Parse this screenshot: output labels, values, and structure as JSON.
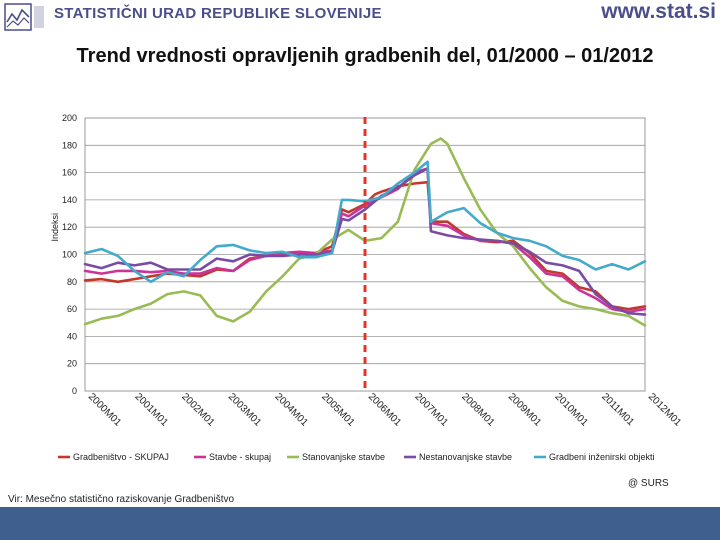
{
  "header": {
    "organization": "STATISTIČNI URAD REPUBLIKE SLOVENIJE",
    "website": "www.stat.si",
    "logo_icon": "surs-logo-icon"
  },
  "colors": {
    "brand": "#4a4f8c",
    "footer": "#3f5f8f",
    "marker": "#e8332a"
  },
  "chart_title": "Trend vrednosti opravljenih gradbenih del, 01/2000 – 01/2012",
  "credit": "@ SURS",
  "source": "Vir: Mesečno statistično raziskovanje Gradbeništvo",
  "chart_data": {
    "type": "line",
    "title": "Trend vrednosti opravljenih gradbenih del, 01/2000 – 01/2012",
    "xlabel": "",
    "ylabel": "Indeksi",
    "ylim": [
      0,
      200
    ],
    "yticks": [
      0,
      20,
      40,
      60,
      80,
      100,
      120,
      140,
      160,
      180,
      200
    ],
    "categories": [
      "2000M01",
      "2001M01",
      "2002M01",
      "2003M01",
      "2004M01",
      "2005M01",
      "2006M01",
      "2007M01",
      "2008M01",
      "2009M01",
      "2010M01",
      "2011M01",
      "2012M01"
    ],
    "grid": true,
    "legend": "bottom",
    "reference_line": {
      "x": 8.5,
      "style": "dashed",
      "color": "#e8332a"
    },
    "series": [
      {
        "name": "Gradbeništvo - SKUPAJ",
        "color": "#c0392b",
        "points": [
          [
            0,
            81
          ],
          [
            0.5,
            82
          ],
          [
            1,
            80
          ],
          [
            1.5,
            82
          ],
          [
            2,
            84
          ],
          [
            2.5,
            86
          ],
          [
            3,
            85
          ],
          [
            3.5,
            84
          ],
          [
            4,
            89
          ],
          [
            4.5,
            88
          ],
          [
            5,
            97
          ],
          [
            5.5,
            99
          ],
          [
            6,
            100
          ],
          [
            6.5,
            100
          ],
          [
            7,
            101
          ],
          [
            7.5,
            106
          ],
          [
            7.8,
            133
          ],
          [
            8,
            131
          ],
          [
            8.5,
            137
          ],
          [
            8.8,
            144
          ],
          [
            9,
            146
          ],
          [
            9.5,
            150
          ],
          [
            10,
            152
          ],
          [
            10.4,
            153
          ],
          [
            10.5,
            124
          ],
          [
            11,
            124
          ],
          [
            11.5,
            115
          ],
          [
            12,
            110
          ],
          [
            12.5,
            109
          ],
          [
            13,
            110
          ],
          [
            13.5,
            101
          ],
          [
            14,
            88
          ],
          [
            14.5,
            86
          ],
          [
            15,
            76
          ],
          [
            15.5,
            73
          ],
          [
            16,
            62
          ],
          [
            16.5,
            60
          ],
          [
            17,
            62
          ]
        ]
      },
      {
        "name": "Stavbe - skupaj",
        "color": "#cc3399",
        "points": [
          [
            0,
            88
          ],
          [
            0.5,
            86
          ],
          [
            1,
            88
          ],
          [
            1.5,
            88
          ],
          [
            2,
            87
          ],
          [
            2.5,
            88
          ],
          [
            3,
            86
          ],
          [
            3.5,
            86
          ],
          [
            4,
            90
          ],
          [
            4.5,
            88
          ],
          [
            5,
            96
          ],
          [
            5.5,
            99
          ],
          [
            6,
            101
          ],
          [
            6.5,
            102
          ],
          [
            7,
            101
          ],
          [
            7.5,
            103
          ],
          [
            7.8,
            130
          ],
          [
            8,
            128
          ],
          [
            8.5,
            136
          ],
          [
            9,
            142
          ],
          [
            9.5,
            148
          ],
          [
            10,
            160
          ],
          [
            10.4,
            163
          ],
          [
            10.5,
            123
          ],
          [
            11,
            121
          ],
          [
            11.5,
            114
          ],
          [
            12,
            110
          ],
          [
            12.5,
            110
          ],
          [
            13,
            108
          ],
          [
            13.5,
            98
          ],
          [
            14,
            86
          ],
          [
            14.5,
            84
          ],
          [
            15,
            74
          ],
          [
            15.5,
            68
          ],
          [
            16,
            60
          ],
          [
            16.5,
            58
          ],
          [
            17,
            60
          ]
        ]
      },
      {
        "name": "Stanovanjske stavbe",
        "color": "#99bb55",
        "points": [
          [
            0,
            49
          ],
          [
            0.5,
            53
          ],
          [
            1,
            55
          ],
          [
            1.5,
            60
          ],
          [
            2,
            64
          ],
          [
            2.5,
            71
          ],
          [
            3,
            73
          ],
          [
            3.5,
            70
          ],
          [
            4,
            55
          ],
          [
            4.5,
            51
          ],
          [
            5,
            58
          ],
          [
            5.5,
            73
          ],
          [
            6,
            84
          ],
          [
            6.5,
            97
          ],
          [
            7,
            100
          ],
          [
            7.5,
            111
          ],
          [
            8,
            118
          ],
          [
            8.5,
            110
          ],
          [
            9,
            112
          ],
          [
            9.5,
            124
          ],
          [
            10,
            162
          ],
          [
            10.5,
            181
          ],
          [
            10.8,
            185
          ],
          [
            11,
            181
          ],
          [
            11.5,
            156
          ],
          [
            12,
            133
          ],
          [
            12.5,
            116
          ],
          [
            13,
            106
          ],
          [
            13.5,
            90
          ],
          [
            14,
            76
          ],
          [
            14.5,
            66
          ],
          [
            15,
            62
          ],
          [
            15.5,
            60
          ],
          [
            16,
            57
          ],
          [
            16.5,
            55
          ],
          [
            17,
            48
          ]
        ]
      },
      {
        "name": "Nestanovanjske stavbe",
        "color": "#7b4ba3",
        "points": [
          [
            0,
            93
          ],
          [
            0.5,
            90
          ],
          [
            1,
            94
          ],
          [
            1.5,
            92
          ],
          [
            2,
            94
          ],
          [
            2.5,
            89
          ],
          [
            3,
            89
          ],
          [
            3.5,
            89
          ],
          [
            4,
            97
          ],
          [
            4.5,
            95
          ],
          [
            5,
            100
          ],
          [
            5.5,
            99
          ],
          [
            6,
            99
          ],
          [
            6.5,
            100
          ],
          [
            7,
            100
          ],
          [
            7.5,
            102
          ],
          [
            7.8,
            126
          ],
          [
            8,
            125
          ],
          [
            8.5,
            133
          ],
          [
            9,
            143
          ],
          [
            9.5,
            149
          ],
          [
            10,
            158
          ],
          [
            10.4,
            163
          ],
          [
            10.5,
            117
          ],
          [
            11,
            114
          ],
          [
            11.5,
            112
          ],
          [
            12,
            111
          ],
          [
            12.5,
            110
          ],
          [
            13,
            108
          ],
          [
            13.5,
            102
          ],
          [
            14,
            94
          ],
          [
            14.5,
            92
          ],
          [
            15,
            88
          ],
          [
            15.5,
            71
          ],
          [
            16,
            62
          ],
          [
            16.5,
            57
          ],
          [
            17,
            56
          ]
        ]
      },
      {
        "name": "Gradbeni inženirski objekti",
        "color": "#44aacc",
        "points": [
          [
            0,
            101
          ],
          [
            0.5,
            104
          ],
          [
            1,
            99
          ],
          [
            1.5,
            88
          ],
          [
            2,
            80
          ],
          [
            2.5,
            87
          ],
          [
            3,
            84
          ],
          [
            3.5,
            96
          ],
          [
            4,
            106
          ],
          [
            4.5,
            107
          ],
          [
            5,
            103
          ],
          [
            5.5,
            101
          ],
          [
            6,
            102
          ],
          [
            6.5,
            98
          ],
          [
            7,
            98
          ],
          [
            7.5,
            101
          ],
          [
            7.8,
            140
          ],
          [
            8,
            140
          ],
          [
            8.5,
            139
          ],
          [
            9,
            142
          ],
          [
            9.5,
            152
          ],
          [
            10,
            160
          ],
          [
            10.4,
            168
          ],
          [
            10.5,
            124
          ],
          [
            11,
            131
          ],
          [
            11.5,
            134
          ],
          [
            12,
            123
          ],
          [
            12.5,
            116
          ],
          [
            13,
            112
          ],
          [
            13.5,
            110
          ],
          [
            14,
            106
          ],
          [
            14.5,
            99
          ],
          [
            15,
            96
          ],
          [
            15.5,
            89
          ],
          [
            16,
            93
          ],
          [
            16.5,
            89
          ],
          [
            17,
            95
          ]
        ]
      }
    ]
  }
}
